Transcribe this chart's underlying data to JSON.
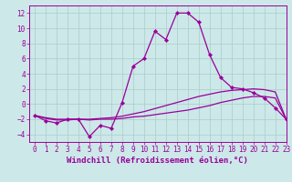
{
  "xlabel": "Windchill (Refroidissement éolien,°C)",
  "background_color": "#cce8e8",
  "line_color": "#990099",
  "x_hours": [
    0,
    1,
    2,
    3,
    4,
    5,
    6,
    7,
    8,
    9,
    10,
    11,
    12,
    13,
    14,
    15,
    16,
    17,
    18,
    19,
    20,
    21,
    22,
    23
  ],
  "temp_values": [
    -1.5,
    -2.2,
    -2.5,
    -2.0,
    -2.0,
    -4.3,
    -2.8,
    -3.2,
    0.2,
    5.0,
    6.0,
    9.6,
    8.5,
    12.0,
    12.0,
    10.8,
    6.5,
    3.5,
    2.2,
    2.0,
    1.5,
    0.8,
    -0.5,
    -2.0
  ],
  "upper_smooth": [
    -1.5,
    -1.8,
    -2.0,
    -2.0,
    -2.0,
    -2.0,
    -1.9,
    -1.8,
    -1.6,
    -1.3,
    -1.0,
    -0.6,
    -0.2,
    0.2,
    0.6,
    1.0,
    1.3,
    1.6,
    1.8,
    1.9,
    2.0,
    1.9,
    1.6,
    -2.0
  ],
  "lower_smooth": [
    -1.5,
    -1.9,
    -2.1,
    -2.1,
    -2.0,
    -2.1,
    -2.0,
    -2.0,
    -1.9,
    -1.7,
    -1.6,
    -1.4,
    -1.2,
    -1.0,
    -0.8,
    -0.5,
    -0.2,
    0.2,
    0.5,
    0.8,
    1.0,
    1.0,
    0.8,
    -2.0
  ],
  "ylim": [
    -5,
    13
  ],
  "xlim": [
    -0.5,
    23
  ],
  "yticks": [
    -4,
    -2,
    0,
    2,
    4,
    6,
    8,
    10,
    12
  ],
  "xticks": [
    0,
    1,
    2,
    3,
    4,
    5,
    6,
    7,
    8,
    9,
    10,
    11,
    12,
    13,
    14,
    15,
    16,
    17,
    18,
    19,
    20,
    21,
    22,
    23
  ],
  "grid_color": "#aacccc",
  "font_color": "#990099",
  "tick_fontsize": 5.5,
  "xlabel_fontsize": 6.5
}
